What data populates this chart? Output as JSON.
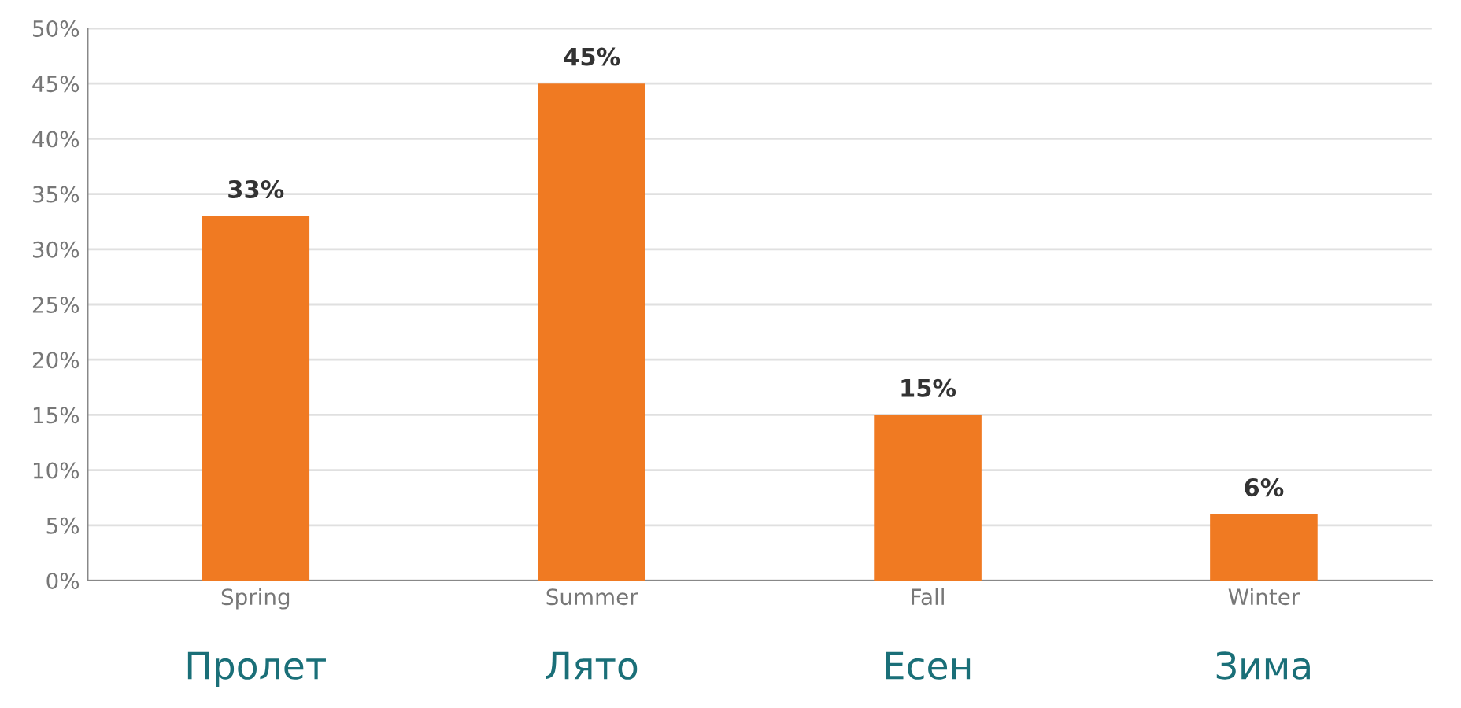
{
  "chart_data": {
    "type": "bar",
    "categories": [
      "Spring",
      "Summer",
      "Fall",
      "Winter"
    ],
    "values": [
      33,
      45,
      15,
      6
    ],
    "value_labels": [
      "33%",
      "45%",
      "15%",
      "6%"
    ],
    "color": "#f07a22",
    "ylim": [
      0,
      50
    ],
    "yticks": [
      {
        "value": 0,
        "label": "0%"
      },
      {
        "value": 5,
        "label": "5%"
      },
      {
        "value": 10,
        "label": "10%"
      },
      {
        "value": 15,
        "label": "15%"
      },
      {
        "value": 20,
        "label": "20%"
      },
      {
        "value": 25,
        "label": "25%"
      },
      {
        "value": 30,
        "label": "30%"
      },
      {
        "value": 35,
        "label": "35%"
      },
      {
        "value": 40,
        "label": "40%"
      },
      {
        "value": 45,
        "label": "45%"
      },
      {
        "value": 50,
        "label": "50%"
      }
    ],
    "grid": "y",
    "annotations": [
      "Пролет",
      "Лято",
      "Есен",
      "Зима"
    ]
  }
}
